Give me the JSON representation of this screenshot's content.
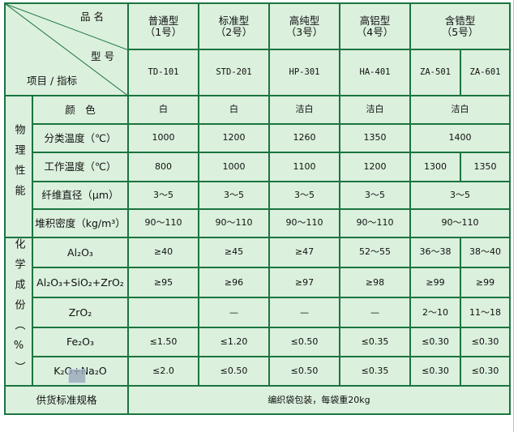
{
  "header": {
    "product_name_label": "品 名",
    "model_label": "型 号",
    "item_label": "项目 / 指标",
    "products": [
      {
        "name": "普通型",
        "num": "（1号）"
      },
      {
        "name": "标准型",
        "num": "（2号）"
      },
      {
        "name": "高纯型",
        "num": "（3号）"
      },
      {
        "name": "高铝型",
        "num": "（4号）"
      },
      {
        "name": "含锆型",
        "num": "（5号）"
      }
    ],
    "models": [
      "TD-101",
      "STD-201",
      "HP-301",
      "HA-401",
      "ZA-501",
      "ZA-601"
    ]
  },
  "physical": {
    "group": "物理性能",
    "rows": [
      {
        "label": "颜　色",
        "values": [
          "白",
          "白",
          "洁白",
          "洁白",
          "洁白"
        ]
      },
      {
        "label": "分类温度（℃）",
        "values": [
          "1000",
          "1200",
          "1260",
          "1350",
          "1400"
        ]
      },
      {
        "label": "工作温度（℃）",
        "values": [
          "800",
          "1000",
          "1100",
          "1200",
          "1300",
          "1350"
        ]
      },
      {
        "label": "纤维直径（μm）",
        "values": [
          "3～5",
          "3～5",
          "3～5",
          "3～5",
          "3～5"
        ]
      },
      {
        "label": "堆积密度（kg/m³）",
        "values": [
          "90～110",
          "90～110",
          "90～110",
          "90～110",
          "90～110"
        ]
      }
    ]
  },
  "chemical": {
    "group": "化学成份（%）",
    "rows": [
      {
        "label": "Al₂O₃",
        "values": [
          "≥40",
          "≥45",
          "≥47",
          "52～55",
          "36～38",
          "38～40"
        ]
      },
      {
        "label": "Al₂O₃+SiO₂+ZrO₂",
        "values": [
          "≥95",
          "≥96",
          "≥97",
          "≥98",
          "≥99",
          "≥99"
        ]
      },
      {
        "label": "ZrO₂",
        "values": [
          "",
          "—",
          "—",
          "—",
          "2～10",
          "11～18"
        ]
      },
      {
        "label": "Fe₂O₃",
        "values": [
          "≤1.50",
          "≤1.20",
          "≤0.50",
          "≤0.35",
          "≤0.30",
          "≤0.30"
        ]
      },
      {
        "label": "K₂O+Na₂O",
        "values": [
          "≤2.0",
          "≤0.50",
          "≤0.50",
          "≤0.35",
          "≤0.30",
          "≤0.30"
        ]
      }
    ]
  },
  "supply": {
    "label": "供货标准规格",
    "value": "编织袋包装，每袋重20kg"
  }
}
